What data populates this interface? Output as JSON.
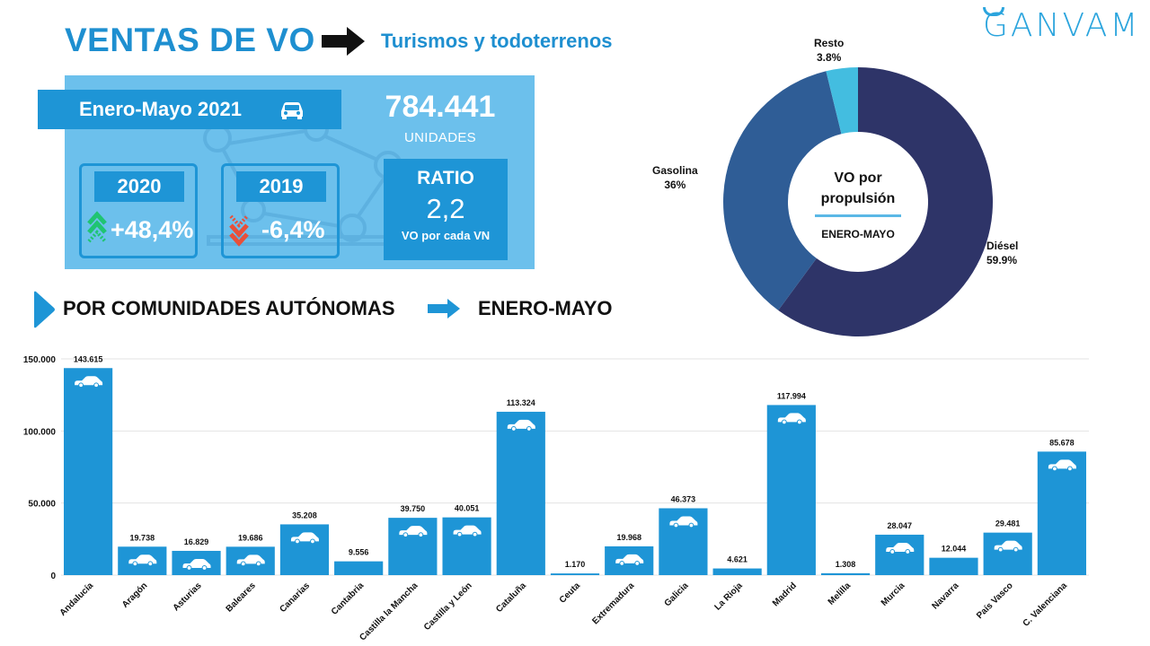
{
  "header": {
    "title": "VENTAS DE VO",
    "subtitle": "Turismos y todoterrenos",
    "brand": "GANVAM"
  },
  "kpis": {
    "period": "Enero-Mayo 2021",
    "units_value": "784.441",
    "units_label": "UNIDADES",
    "comparisons": [
      {
        "year": "2020",
        "change": "+48,4%",
        "direction": "up",
        "color": "#1fc472"
      },
      {
        "year": "2019",
        "change": "-6,4%",
        "direction": "down",
        "color": "#e8503a"
      }
    ],
    "ratio_label": "RATIO",
    "ratio_value": "2,2",
    "ratio_sub": "VO por cada VN"
  },
  "section": {
    "label": "POR COMUNIDADES AUTÓNOMAS",
    "period": "ENERO-MAYO"
  },
  "colors": {
    "accent": "#1e8fd0",
    "kpi_bg": "#6cc0ec",
    "bar": "#1e95d6",
    "diesel": "#2e3468",
    "gasolina": "#2f5d96",
    "resto": "#43bde0"
  },
  "chart_data": [
    {
      "type": "pie",
      "variant": "donut",
      "center_title": "VO por propulsión",
      "center_sub": "ENERO-MAYO",
      "slices": [
        {
          "label": "Diésel",
          "value": 59.9,
          "display": "59.9%",
          "color": "#2e3468"
        },
        {
          "label": "Gasolina",
          "value": 36,
          "display": "36%",
          "color": "#2f5d96"
        },
        {
          "label": "Resto",
          "value": 3.8,
          "display": "3.8%",
          "color": "#43bde0"
        }
      ]
    },
    {
      "type": "bar",
      "categories": [
        "Andalucía",
        "Aragón",
        "Asturias",
        "Baleares",
        "Canarias",
        "Cantabria",
        "Castilla la Mancha",
        "Castilla y León",
        "Cataluña",
        "Ceuta",
        "Extremadura",
        "Galicia",
        "La Rioja",
        "Madrid",
        "Melilla",
        "Murcia",
        "Navarra",
        "País Vasco",
        "C. Valenciana"
      ],
      "values": [
        143615,
        19738,
        16829,
        19686,
        35208,
        9556,
        39750,
        40051,
        113324,
        1170,
        19968,
        46373,
        4621,
        117994,
        1308,
        28047,
        12044,
        29481,
        85678
      ],
      "value_labels": [
        "143.615",
        "19.738",
        "16.829",
        "19.686",
        "35.208",
        "9.556",
        "39.750",
        "40.051",
        "113.324",
        "1.170",
        "19.968",
        "46.373",
        "4.621",
        "117.994",
        "1.308",
        "28.047",
        "12.044",
        "29.481",
        "85.678"
      ],
      "car_icons": [
        true,
        true,
        true,
        true,
        true,
        false,
        true,
        true,
        true,
        false,
        true,
        true,
        false,
        true,
        false,
        true,
        false,
        true,
        true
      ],
      "yticks": [
        0,
        50000,
        100000,
        150000
      ],
      "ytick_labels": [
        "0",
        "50.000",
        "100.000",
        "150.000"
      ],
      "ylim": [
        0,
        150000
      ],
      "grid": true
    }
  ]
}
